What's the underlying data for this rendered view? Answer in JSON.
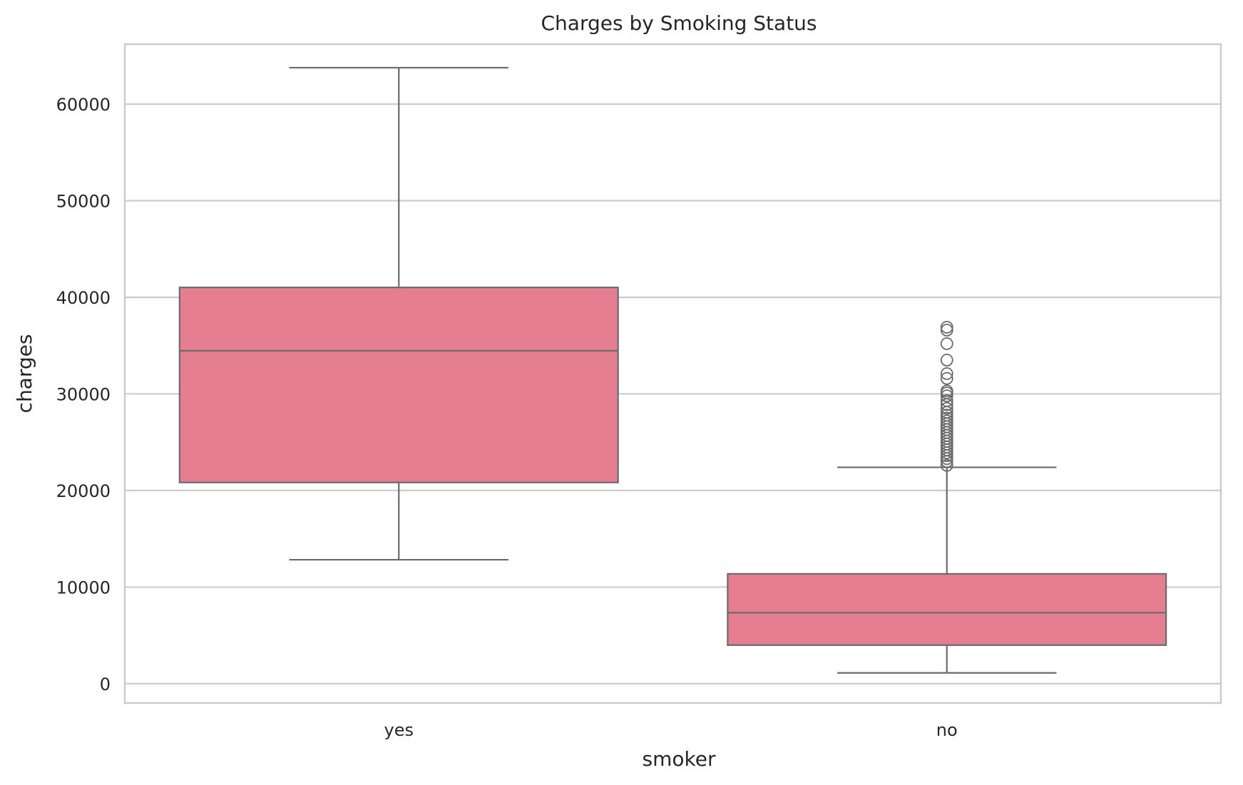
{
  "chart_data": {
    "type": "box",
    "title": "Charges by Smoking Status",
    "xlabel": "smoker",
    "ylabel": "charges",
    "categories": [
      "yes",
      "no"
    ],
    "ylim": [
      -2000,
      66200
    ],
    "yticks": [
      0,
      10000,
      20000,
      30000,
      40000,
      50000,
      60000
    ],
    "ytick_labels": [
      "0",
      "10000",
      "20000",
      "30000",
      "40000",
      "50000",
      "60000"
    ],
    "grid": true,
    "boxes": [
      {
        "category": "yes",
        "whisker_low": 12830,
        "q1": 20830,
        "median": 34460,
        "q3": 41020,
        "whisker_high": 63770,
        "outliers": []
      },
      {
        "category": "no",
        "whisker_low": 1120,
        "q1": 3990,
        "median": 7350,
        "q3": 11370,
        "whisker_high": 22400,
        "outliers": [
          22600,
          23000,
          23300,
          23600,
          23900,
          24200,
          24500,
          24800,
          25100,
          25400,
          25700,
          26000,
          26300,
          26600,
          26900,
          27200,
          27500,
          27800,
          28100,
          28500,
          28900,
          29300,
          29800,
          30100,
          30300,
          31600,
          32100,
          33500,
          35200,
          36600,
          36900
        ]
      }
    ],
    "colors": {
      "box_fill": "#e67e91",
      "box_line": "#6b6b6b",
      "grid": "#cccccc",
      "frame": "#cccccc",
      "text": "#262626"
    }
  }
}
